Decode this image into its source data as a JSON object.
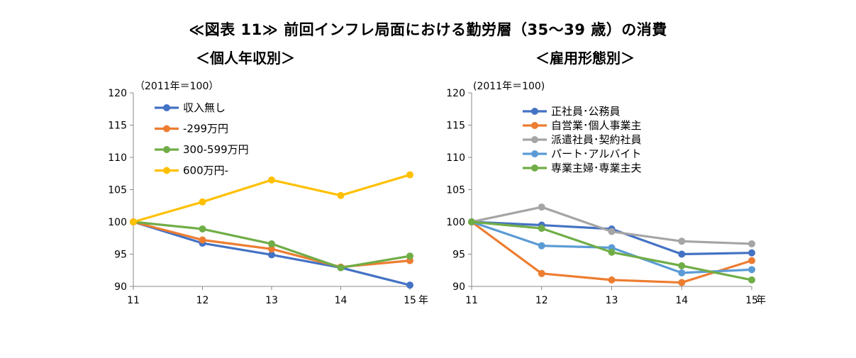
{
  "title": "≪図表 11≫ 前回インフレ局面における勤労層（35～39 歳）の消費",
  "chart_data": [
    {
      "type": "line",
      "subtitle": "＜個人年収別＞",
      "note": "（2011年＝100）",
      "x": [
        "11",
        "12",
        "13",
        "14",
        "15"
      ],
      "x_unit": "年",
      "ylim": [
        90,
        120
      ],
      "yticks": [
        90,
        95,
        100,
        105,
        110,
        115,
        120
      ],
      "grid": false,
      "legend_position": "top-left",
      "series": [
        {
          "name": "収入無し",
          "color": "#4472C4",
          "values": [
            100,
            96.7,
            94.9,
            92.9,
            90.2
          ]
        },
        {
          "name": "-299万円",
          "color": "#ED7D31",
          "values": [
            100,
            97.2,
            95.8,
            93.0,
            94.0
          ]
        },
        {
          "name": "300-599万円",
          "color": "#70AD47",
          "values": [
            100,
            98.9,
            96.6,
            92.9,
            94.7
          ]
        },
        {
          "name": "600万円-",
          "color": "#FFC000",
          "values": [
            100,
            103.1,
            106.5,
            104.1,
            107.3
          ]
        }
      ]
    },
    {
      "type": "line",
      "subtitle": "＜雇用形態別＞",
      "note": "(2011年＝100)",
      "x": [
        "11",
        "12",
        "13",
        "14",
        "15"
      ],
      "x_unit": "年",
      "ylim": [
        90,
        120
      ],
      "yticks": [
        90,
        95,
        100,
        105,
        110,
        115,
        120
      ],
      "grid": false,
      "legend_position": "top-left",
      "series": [
        {
          "name": "正社員･公務員",
          "color": "#4472C4",
          "values": [
            100,
            99.5,
            98.9,
            95.0,
            95.2
          ]
        },
        {
          "name": "自営業･個人事業主",
          "color": "#ED7D31",
          "values": [
            100,
            92.0,
            91.0,
            90.6,
            94.0
          ]
        },
        {
          "name": "派遣社員･契約社員",
          "color": "#A5A5A5",
          "values": [
            100,
            102.3,
            98.5,
            97.0,
            96.6
          ]
        },
        {
          "name": "パート･アルバイト",
          "color": "#5B9BD5",
          "values": [
            100,
            96.3,
            96.0,
            92.1,
            92.6
          ]
        },
        {
          "name": "専業主婦･専業主夫",
          "color": "#70AD47",
          "values": [
            100,
            99.0,
            95.3,
            93.2,
            91.0
          ]
        }
      ]
    }
  ]
}
